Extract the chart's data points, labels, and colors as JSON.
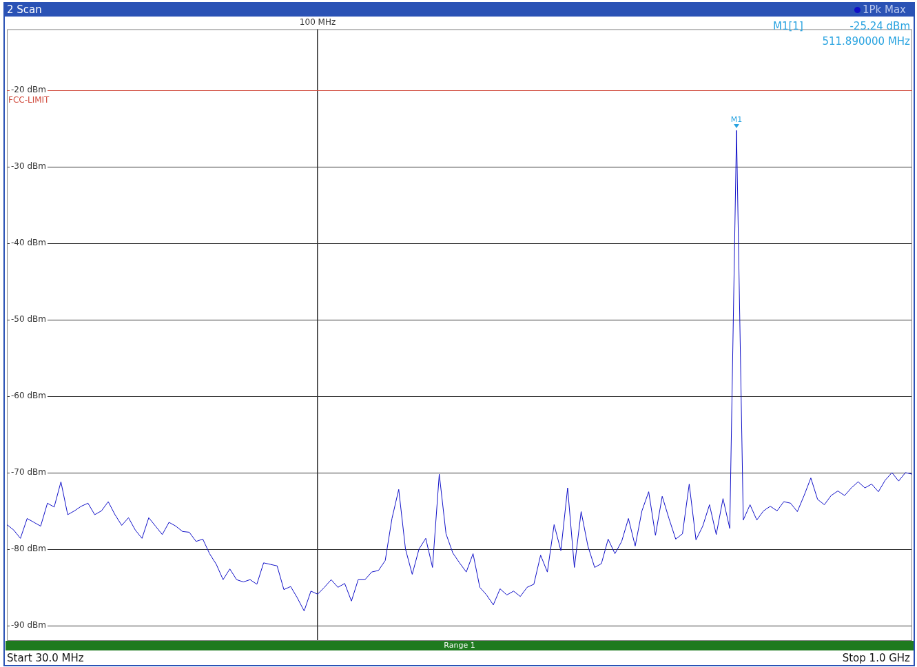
{
  "chart_data": {
    "type": "line",
    "title": "2 Scan",
    "categories": [
      null,
      null,
      null,
      null,
      null,
      null,
      null,
      null,
      null,
      null,
      null,
      null,
      null,
      null,
      null,
      null,
      null,
      null,
      null,
      null,
      null,
      null,
      null,
      null,
      null,
      null,
      null,
      null,
      null,
      null,
      null,
      null,
      null,
      null,
      null,
      null,
      null,
      null,
      null,
      null,
      null,
      null,
      null,
      null,
      null,
      null,
      "100 MHz",
      null,
      null,
      null,
      null,
      null,
      null,
      null,
      null,
      null,
      null,
      null,
      null,
      null,
      null,
      null,
      null,
      null,
      null,
      null,
      null,
      null,
      null,
      null,
      null,
      null,
      null,
      null,
      null,
      null,
      null,
      null,
      null,
      null,
      null,
      null,
      null,
      null,
      null,
      null,
      null,
      null,
      null,
      null,
      null,
      null,
      null,
      null,
      null,
      null,
      null,
      null,
      null,
      null,
      null,
      null,
      null,
      null,
      null,
      null,
      null,
      null,
      null,
      null,
      null,
      null,
      null,
      null,
      null,
      null,
      null,
      null,
      null,
      null,
      null,
      null,
      null,
      null,
      null,
      null,
      null,
      null,
      null,
      null,
      null,
      null,
      null,
      null,
      null
    ],
    "ylim": [
      -92,
      -12
    ],
    "yticks": [
      {
        "value": -20,
        "label": "-20 dBm"
      },
      {
        "value": -30,
        "label": "-30 dBm"
      },
      {
        "value": -40,
        "label": "-40 dBm"
      },
      {
        "value": -50,
        "label": "-50 dBm"
      },
      {
        "value": -60,
        "label": "-60 dBm"
      },
      {
        "value": -70,
        "label": "-70 dBm"
      },
      {
        "value": -80,
        "label": "-80 dBm"
      },
      {
        "value": -90,
        "label": "-90 dBm"
      }
    ],
    "grid": true,
    "legend": "top right",
    "marker": "none",
    "line_style": "solid",
    "ref_lines": [
      {
        "axis": "y",
        "value": -20,
        "label": "FCC-LIMIT",
        "color": "#d04a3c"
      }
    ],
    "annotations": [
      {
        "text": "M1",
        "y": -25.24
      },
      "M1[1]",
      "-25.24 dBm",
      "511.890000 MHz",
      "Range 1",
      "Start 30.0 MHz",
      "Stop 1.0 GHz"
    ],
    "series": [
      {
        "name": "1Pk Max",
        "color": "#1010c8",
        "values": [
          -76.8,
          -77.5,
          -78.6,
          -76.0,
          -76.5,
          -77.0,
          -74.0,
          -74.5,
          -71.2,
          -75.5,
          -75.0,
          -74.4,
          -74.0,
          -75.5,
          -75.0,
          -73.8,
          -75.5,
          -76.9,
          -75.9,
          -77.5,
          -78.6,
          -75.9,
          -77.0,
          -78.1,
          -76.5,
          -77.0,
          -77.7,
          -77.8,
          -79.0,
          -78.7,
          -80.6,
          -82.0,
          -84.0,
          -82.6,
          -84.0,
          -84.3,
          -84.0,
          -84.6,
          -81.8,
          -82.0,
          -82.2,
          -85.3,
          -84.9,
          -86.4,
          -88.1,
          -85.5,
          -85.9,
          -85.0,
          -84.0,
          -85.0,
          -84.5,
          -86.8,
          -84.0,
          -84.0,
          -83.0,
          -82.8,
          -81.5,
          -76.0,
          -72.2,
          -80.0,
          -83.3,
          -80.0,
          -78.6,
          -82.4,
          -70.2,
          -78.0,
          -80.5,
          -81.8,
          -83.0,
          -80.6,
          -85.0,
          -86.0,
          -87.3,
          -85.2,
          -86.0,
          -85.5,
          -86.2,
          -85.0,
          -84.6,
          -80.8,
          -83.0,
          -76.8,
          -80.2,
          -72.0,
          -82.4,
          -75.1,
          -79.6,
          -82.4,
          -81.9,
          -78.7,
          -80.6,
          -79.0,
          -76.0,
          -79.6,
          -75.0,
          -72.5,
          -78.2,
          -73.1,
          -76.0,
          -78.7,
          -78.0,
          -71.5,
          -78.8,
          -77.0,
          -74.2,
          -78.1,
          -73.4,
          -77.3,
          -25.24,
          -76.2,
          -74.2,
          -76.2,
          -75.0,
          -74.4,
          -75.0,
          -73.8,
          -74.0,
          -75.1,
          -73.0,
          -70.7,
          -73.5,
          -74.2,
          -73.0,
          -72.4,
          -73.0,
          -72.0,
          -71.2,
          -72.0,
          -71.5,
          -72.5,
          -71.0,
          -70.0,
          -71.1,
          -70.0,
          -70.2
        ]
      }
    ]
  }
}
